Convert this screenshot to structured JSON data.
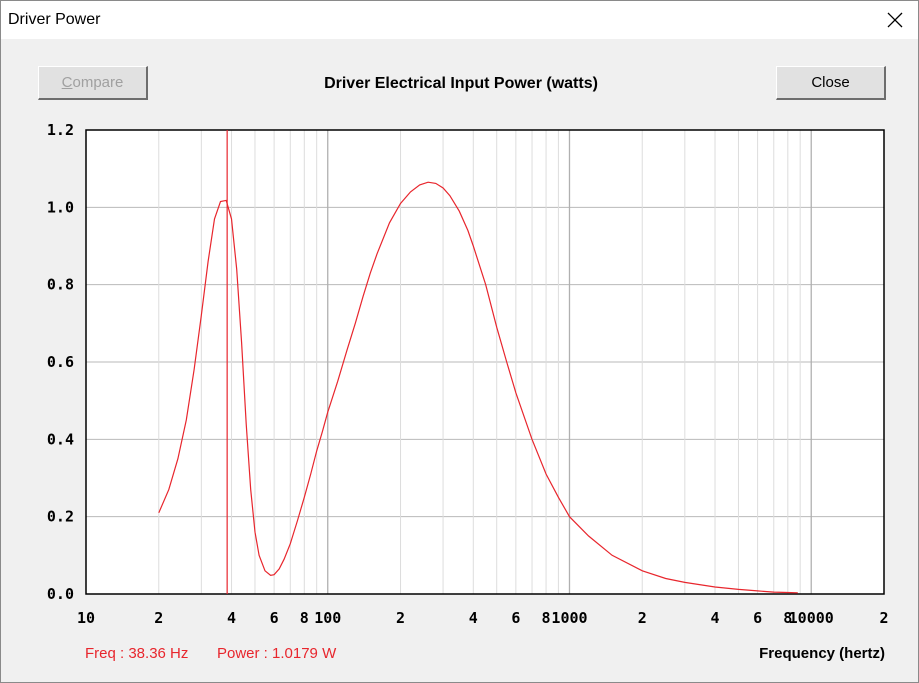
{
  "window": {
    "title": "Driver Power",
    "close_icon": "close-icon"
  },
  "toolbar": {
    "compare_label_first": "C",
    "compare_label_rest": "ompare",
    "close_label": "Close"
  },
  "readout": {
    "freq": "Freq : 38.36 Hz",
    "power": "Power : 1.0179 W"
  },
  "chart_data": {
    "type": "line",
    "title": "Driver Electrical Input Power (watts)",
    "xlabel": "Frequency (hertz)",
    "ylabel": "",
    "x_scale": "log",
    "xlim": [
      10,
      20000
    ],
    "ylim": [
      0,
      1.2
    ],
    "grid": true,
    "y_ticks": [
      "0.0",
      "0.2",
      "0.4",
      "0.6",
      "0.8",
      "1.0",
      "1.2"
    ],
    "y_tick_values": [
      0,
      0.2,
      0.4,
      0.6,
      0.8,
      1.0,
      1.2
    ],
    "x_tick_labels": [
      {
        "value": 10,
        "label": "10"
      },
      {
        "value": 20,
        "label": "2"
      },
      {
        "value": 40,
        "label": "4"
      },
      {
        "value": 60,
        "label": "6"
      },
      {
        "value": 80,
        "label": "8"
      },
      {
        "value": 100,
        "label": "100"
      },
      {
        "value": 200,
        "label": "2"
      },
      {
        "value": 400,
        "label": "4"
      },
      {
        "value": 600,
        "label": "6"
      },
      {
        "value": 800,
        "label": "8"
      },
      {
        "value": 1000,
        "label": "1000"
      },
      {
        "value": 2000,
        "label": "2"
      },
      {
        "value": 4000,
        "label": "4"
      },
      {
        "value": 6000,
        "label": "6"
      },
      {
        "value": 8000,
        "label": "8"
      },
      {
        "value": 10000,
        "label": "10000"
      },
      {
        "value": 20000,
        "label": "2"
      }
    ],
    "cursor_x": 38.36,
    "series": [
      {
        "color": "#e8262d",
        "x": [
          20,
          22,
          24,
          26,
          28,
          30,
          32,
          34,
          36,
          38,
          40,
          42,
          44,
          46,
          48,
          50,
          52,
          55,
          58,
          60,
          63,
          66,
          70,
          75,
          80,
          85,
          90,
          95,
          100,
          110,
          120,
          130,
          140,
          150,
          160,
          180,
          200,
          220,
          240,
          260,
          280,
          300,
          320,
          350,
          380,
          400,
          450,
          500,
          550,
          600,
          700,
          800,
          900,
          1000,
          1200,
          1500,
          2000,
          2500,
          3000,
          4000,
          5000,
          6000,
          7000,
          8000,
          8800
        ],
        "y": [
          0.21,
          0.27,
          0.35,
          0.45,
          0.58,
          0.72,
          0.86,
          0.97,
          1.015,
          1.018,
          0.97,
          0.84,
          0.65,
          0.44,
          0.27,
          0.16,
          0.1,
          0.06,
          0.048,
          0.05,
          0.065,
          0.09,
          0.13,
          0.19,
          0.25,
          0.31,
          0.37,
          0.42,
          0.47,
          0.55,
          0.63,
          0.7,
          0.77,
          0.83,
          0.88,
          0.96,
          1.01,
          1.04,
          1.058,
          1.065,
          1.062,
          1.05,
          1.03,
          0.99,
          0.94,
          0.9,
          0.8,
          0.69,
          0.6,
          0.52,
          0.4,
          0.31,
          0.25,
          0.2,
          0.15,
          0.1,
          0.06,
          0.04,
          0.03,
          0.018,
          0.012,
          0.008,
          0.005,
          0.004,
          0.003
        ]
      }
    ]
  }
}
